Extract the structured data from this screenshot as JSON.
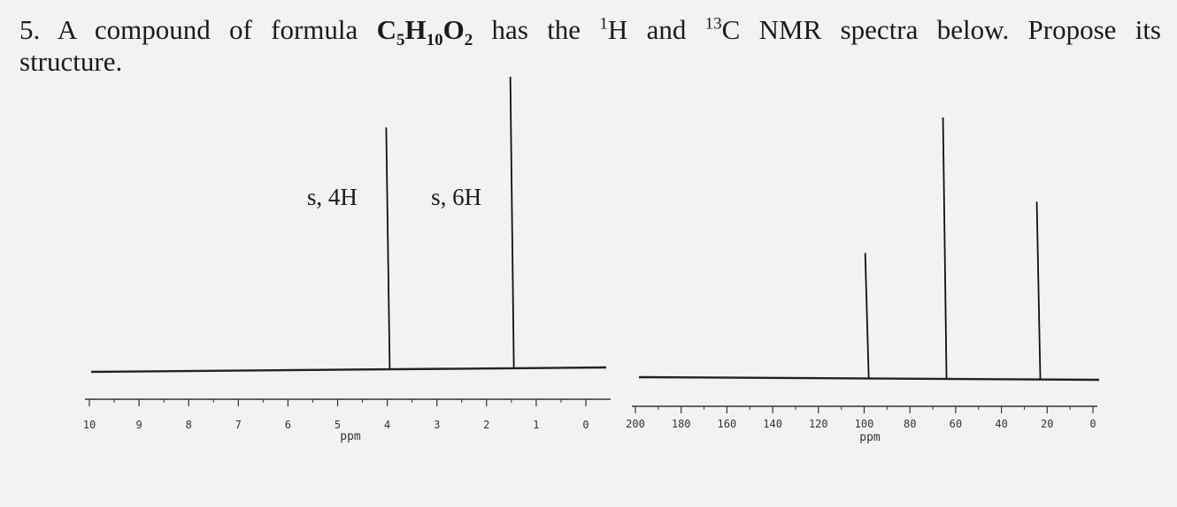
{
  "question": {
    "number": "5.",
    "text_before": "A compound of formula ",
    "formula_parts": [
      {
        "text": "C",
        "sub": "5"
      },
      {
        "text": "H",
        "sub": "10"
      },
      {
        "text": "O",
        "sub": "2"
      }
    ],
    "text_middle": " has the ",
    "nucleus1_mass": "1",
    "nucleus1": "H",
    "text_and": " and ",
    "nucleus2_mass": "13",
    "nucleus2": "C",
    "text_after": " NMR spectra below. Propose its",
    "text_line2": "structure."
  },
  "chart_data": [
    {
      "type": "line",
      "name": "1H NMR",
      "xlabel": "ppm",
      "xlim": [
        10,
        0
      ],
      "x_ticks": [
        10,
        9,
        8,
        7,
        6,
        5,
        4,
        3,
        2,
        1,
        0
      ],
      "tick_labels": [
        "10",
        "9",
        "8",
        "7",
        "6",
        "5",
        "4",
        "3",
        "2",
        "1",
        "0"
      ],
      "peaks": [
        {
          "ppm": 3.95,
          "height": 0.83,
          "label": "s, 4H"
        },
        {
          "ppm": 1.45,
          "height": 1.0,
          "label": "s, 6H"
        }
      ],
      "grid": false
    },
    {
      "type": "line",
      "name": "13C NMR",
      "xlabel": "ppm",
      "xlim": [
        200,
        0
      ],
      "x_ticks": [
        200,
        180,
        160,
        140,
        120,
        100,
        80,
        60,
        40,
        20,
        0
      ],
      "tick_labels": [
        "200",
        "180",
        "160",
        "140",
        "120",
        "100",
        "80",
        "60",
        "40",
        "20",
        "0"
      ],
      "peaks": [
        {
          "ppm": 98,
          "height": 0.48
        },
        {
          "ppm": 64,
          "height": 1.0
        },
        {
          "ppm": 23,
          "height": 0.68
        }
      ],
      "grid": false
    }
  ]
}
